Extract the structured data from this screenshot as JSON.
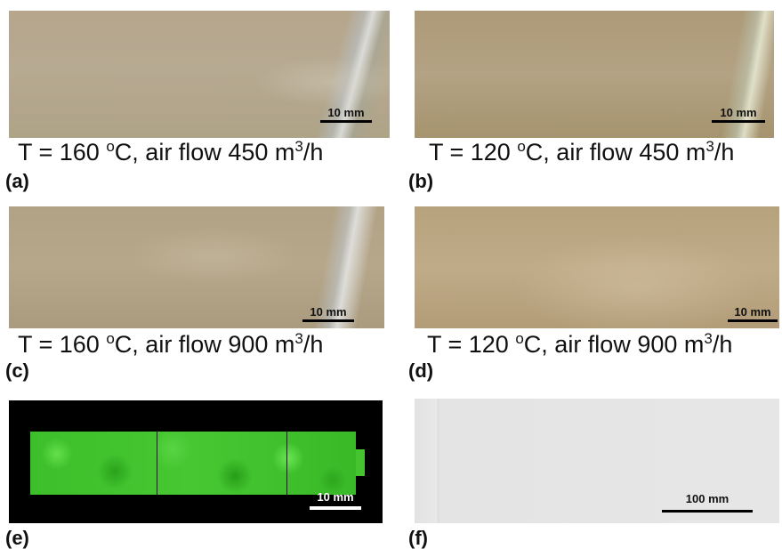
{
  "panels": [
    {
      "letter": "(a)",
      "caption_pre": "T = 160 ",
      "caption_deg": "o",
      "caption_mid": "C, air flow 450 m",
      "caption_sup": "3",
      "caption_post": "/h",
      "scale_label": "10 mm"
    },
    {
      "letter": "(b)",
      "caption_pre": "T = 120 ",
      "caption_deg": "o",
      "caption_mid": "C, air flow 450 m",
      "caption_sup": "3",
      "caption_post": "/h",
      "scale_label": "10 mm"
    },
    {
      "letter": "(c)",
      "caption_pre": "T = 160 ",
      "caption_deg": "o",
      "caption_mid": "C, air flow 900 m",
      "caption_sup": "3",
      "caption_post": "/h",
      "scale_label": "10 mm"
    },
    {
      "letter": "(d)",
      "caption_pre": "T = 120 ",
      "caption_deg": "o",
      "caption_mid": "C, air flow 900 m",
      "caption_sup": "3",
      "caption_post": "/h",
      "scale_label": "10 mm"
    },
    {
      "letter": "(e)",
      "scale_label": "10 mm"
    },
    {
      "letter": "(f)",
      "scale_label": "100 mm"
    }
  ],
  "colors": {
    "scale_bar_dark": "#000000",
    "scale_bar_light": "#ffffff",
    "fluorescence_green": "#3cbf2a"
  }
}
